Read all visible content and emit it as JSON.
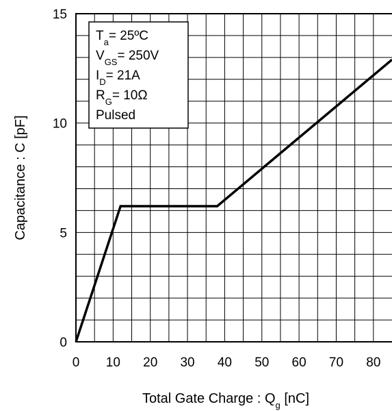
{
  "chart_data": {
    "type": "line",
    "title": "",
    "xlabel": {
      "main": "Total Gate Charge : Q",
      "sub": "g",
      "unit": " [nC]"
    },
    "ylabel": "Capacitance : C [pF]",
    "xlim": [
      0,
      85
    ],
    "ylim": [
      0,
      15
    ],
    "x_ticks": [
      0,
      10,
      20,
      30,
      40,
      50,
      60,
      70,
      80
    ],
    "y_ticks": [
      0,
      5,
      10,
      15
    ],
    "grid": true,
    "grid_x_step": 5,
    "grid_y_step": 1,
    "legend_position": "top-left",
    "legend": [
      {
        "main": "T",
        "sub": "a",
        "rest": "= 25ºC"
      },
      {
        "main": "V",
        "sub": "GS",
        "rest": "= 250V"
      },
      {
        "main": "I",
        "sub": "D",
        "rest": "= 21A"
      },
      {
        "main": "R",
        "sub": "G",
        "rest": "= 10Ω"
      },
      {
        "main": "Pulsed",
        "sub": "",
        "rest": ""
      }
    ],
    "series": [
      {
        "color": "#000000",
        "x": [
          0,
          12,
          38,
          85
        ],
        "y": [
          0,
          6.2,
          6.2,
          12.9
        ]
      }
    ]
  }
}
